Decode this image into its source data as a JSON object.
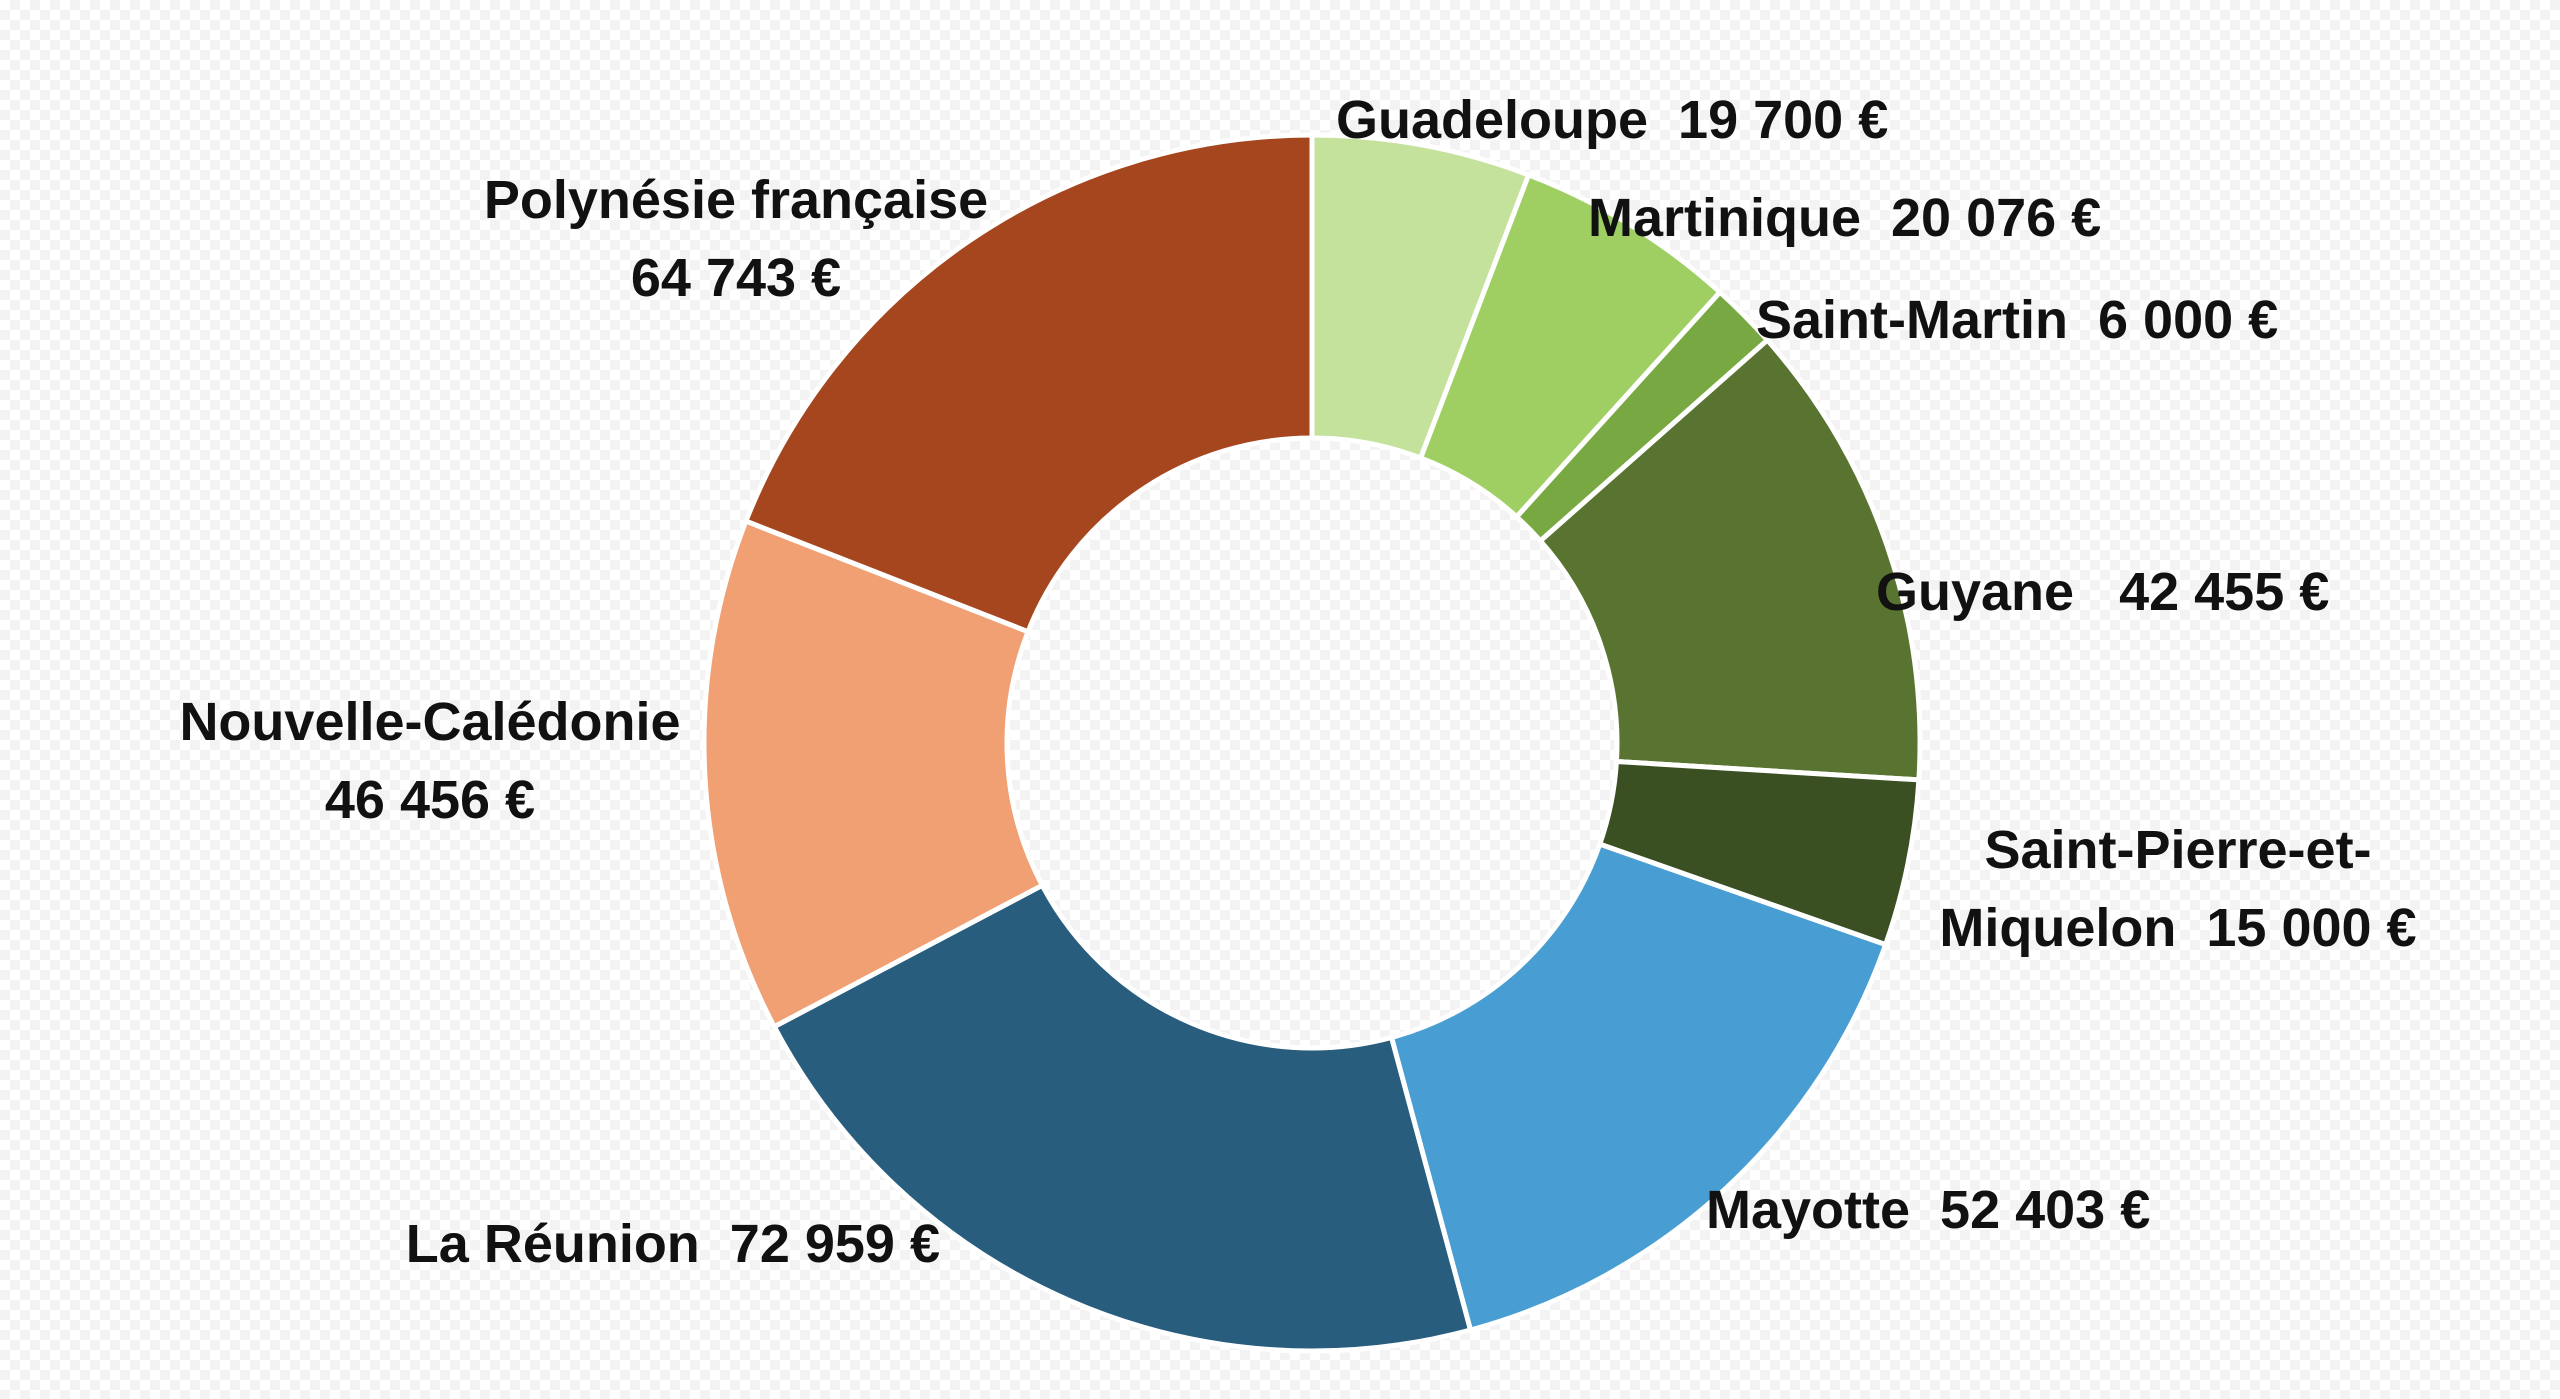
{
  "chart_data": {
    "type": "pie",
    "donut": true,
    "start_angle_deg": 0,
    "direction": "clockwise",
    "slices": [
      {
        "category": "Guadeloupe",
        "value": 19700,
        "value_label": "19 700 €",
        "label_text": "Guadeloupe  19 700 €",
        "color": "#c5e29c"
      },
      {
        "category": "Martinique",
        "value": 20076,
        "value_label": "20 076 €",
        "label_text": "Martinique  20 076 €",
        "color": "#9fcf63"
      },
      {
        "category": "Saint-Martin",
        "value": 6000,
        "value_label": "6 000 €",
        "label_text": "Saint-Martin  6 000 €",
        "color": "#78a842"
      },
      {
        "category": "Guyane",
        "value": 42455,
        "value_label": "42 455 €",
        "label_text": "Guyane   42 455 €",
        "color": "#587430"
      },
      {
        "category": "Saint-Pierre-et-Miquelon",
        "value": 15000,
        "value_label": "15 000 €",
        "label_lines": [
          "Saint-Pierre-et-",
          "Miquelon  15 000 €"
        ],
        "color": "#3a5023"
      },
      {
        "category": "Mayotte",
        "value": 52403,
        "value_label": "52 403 €",
        "label_text": "Mayotte  52 403 €",
        "color": "#489dd2"
      },
      {
        "category": "La Réunion",
        "value": 72959,
        "value_label": "72 959 €",
        "label_text": "La Réunion  72 959 €",
        "color": "#285d7e"
      },
      {
        "category": "Nouvelle-Calédonie",
        "value": 46456,
        "value_label": "46 456 €",
        "label_lines": [
          "Nouvelle-Calédonie",
          "46 456 €"
        ],
        "color": "#f0a072"
      },
      {
        "category": "Polynésie française",
        "value": 64743,
        "value_label": "64 743 €",
        "label_lines": [
          "Polynésie française",
          "64 743 €"
        ],
        "color": "#a6461e"
      }
    ]
  }
}
